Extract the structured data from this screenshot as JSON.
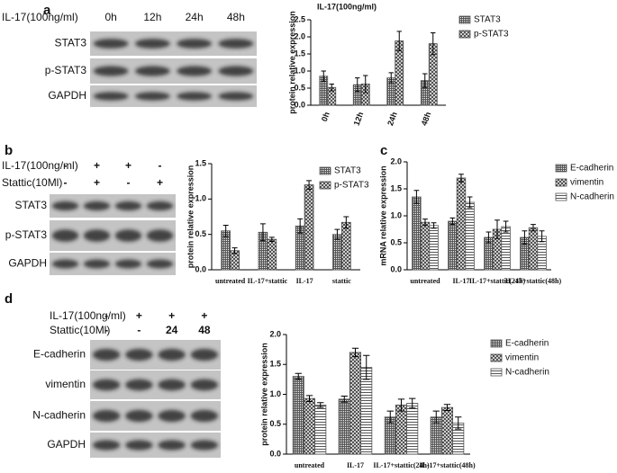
{
  "panels": [
    {
      "letter": "a",
      "treatment": "IL-17(100ng/ml)",
      "lanes": [
        "0h",
        "12h",
        "24h",
        "48h"
      ],
      "proteins": [
        "STAT3",
        "p-STAT3",
        "GAPDH"
      ]
    },
    {
      "letter": "b",
      "conditions": [
        {
          "label": "IL-17(100ng/ml)",
          "signs": [
            "-",
            "+",
            "+",
            "-"
          ]
        },
        {
          "label": "Stattic(10Ml)",
          "signs": [
            "-",
            "+",
            "-",
            "+"
          ]
        }
      ],
      "proteins": [
        "STAT3",
        "p-STAT3",
        "GAPDH"
      ]
    },
    {
      "letter": "c"
    },
    {
      "letter": "d",
      "conditions": [
        {
          "label": "IL-17(100ng/ml)",
          "signs": [
            "-",
            "+",
            "+",
            "+"
          ]
        },
        {
          "label": "Stattic(10Ml)",
          "signs": [
            "-",
            "-",
            "24",
            "48"
          ]
        }
      ],
      "proteins": [
        "E-cadherin",
        "vimentin",
        "N-cadherin",
        "GAPDH"
      ]
    }
  ],
  "chart_data": [
    {
      "type": "bar",
      "title": "IL-17(100ng/ml)",
      "y_label": "protein relative expression",
      "categories": [
        "0h",
        "12h",
        "24h",
        "48h"
      ],
      "series": [
        {
          "name": "STAT3",
          "color": "#555555",
          "pattern": "grid",
          "values": [
            0.85,
            0.6,
            0.8,
            0.72
          ],
          "errors": [
            0.15,
            0.2,
            0.15,
            0.2
          ]
        },
        {
          "name": "p-STAT3",
          "color": "#444444",
          "pattern": "check",
          "values": [
            0.52,
            0.62,
            1.88,
            1.8
          ],
          "errors": [
            0.1,
            0.25,
            0.28,
            0.32
          ]
        }
      ],
      "ylim": [
        0,
        2.5
      ],
      "yticks": [
        {
          "value": 0,
          "label": "0.0"
        },
        0.5,
        {
          "value": 1,
          "label": "1.0"
        },
        1.5,
        {
          "value": 2,
          "label": "2.0"
        },
        2.5
      ]
    },
    {
      "type": "bar",
      "y_label": "protein relative expression",
      "categories": [
        "untreated",
        "IL-17+stattic",
        "IL-17",
        "stattic"
      ],
      "series": [
        {
          "name": "STAT3",
          "color": "#555555",
          "pattern": "grid",
          "values": [
            0.55,
            0.53,
            0.62,
            0.5
          ],
          "errors": [
            0.08,
            0.12,
            0.1,
            0.07
          ]
        },
        {
          "name": "p-STAT3",
          "color": "#444444",
          "pattern": "check",
          "values": [
            0.27,
            0.43,
            1.2,
            0.67
          ],
          "errors": [
            0.04,
            0.03,
            0.06,
            0.08
          ]
        }
      ],
      "ylim": [
        0,
        1.5
      ],
      "yticks": [
        {
          "value": 0,
          "label": "0.0"
        },
        0.5,
        {
          "value": 1,
          "label": "1.0"
        },
        1.5
      ]
    },
    {
      "type": "bar",
      "y_label": "mRNA relative expression",
      "categories": [
        "untreated",
        "IL-17",
        "IL-17+stattic(24h)",
        "IL-17+stattic(48h)"
      ],
      "series": [
        {
          "name": "E-cadherin",
          "color": "#555555",
          "pattern": "grid",
          "values": [
            1.35,
            0.9,
            0.6,
            0.6
          ],
          "errors": [
            0.12,
            0.06,
            0.1,
            0.12
          ]
        },
        {
          "name": "vimentin",
          "color": "#444444",
          "pattern": "check",
          "values": [
            0.88,
            1.7,
            0.75,
            0.78
          ],
          "errors": [
            0.06,
            0.07,
            0.17,
            0.06
          ]
        },
        {
          "name": "N-cadherin",
          "color": "#555555",
          "pattern": "hline",
          "values": [
            0.82,
            1.25,
            0.8,
            0.62
          ],
          "errors": [
            0.05,
            0.1,
            0.1,
            0.1
          ]
        }
      ],
      "ylim": [
        0,
        2
      ],
      "yticks": [
        {
          "value": 0,
          "label": "0.0"
        },
        0.5,
        {
          "value": 1,
          "label": "1.0"
        },
        1.5,
        {
          "value": 2,
          "label": "2.0"
        }
      ]
    },
    {
      "type": "bar",
      "y_label": "protein relative expression",
      "categories": [
        "untreated",
        "IL-17",
        "IL-17+stattic(24h)",
        "IL-17+stattic(48h)"
      ],
      "series": [
        {
          "name": "E-cadherin",
          "color": "#555555",
          "pattern": "grid",
          "values": [
            1.3,
            0.92,
            0.62,
            0.62
          ],
          "errors": [
            0.05,
            0.05,
            0.1,
            0.1
          ]
        },
        {
          "name": "vimentin",
          "color": "#444444",
          "pattern": "check",
          "values": [
            0.93,
            1.7,
            0.82,
            0.78
          ],
          "errors": [
            0.05,
            0.07,
            0.1,
            0.05
          ]
        },
        {
          "name": "N-cadherin",
          "color": "#555555",
          "pattern": "hline",
          "values": [
            0.82,
            1.45,
            0.85,
            0.52
          ],
          "errors": [
            0.04,
            0.2,
            0.08,
            0.1
          ]
        }
      ],
      "ylim": [
        0,
        2
      ],
      "yticks": [
        {
          "value": 0,
          "label": "0.0"
        },
        0.5,
        {
          "value": 1,
          "label": "1.0"
        },
        1.5,
        {
          "value": 2,
          "label": "2.0"
        }
      ]
    }
  ]
}
